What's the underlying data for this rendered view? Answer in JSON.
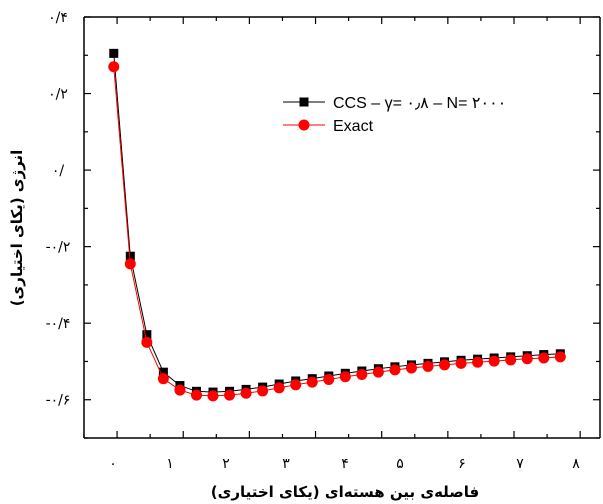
{
  "chart_data": {
    "type": "line",
    "xlabel": "فاصله‌ی بین هسته‌ای (یکای اختیاری)",
    "ylabel": "انرژی (یکای اختیاری)",
    "xlim": [
      0.5,
      8.3
    ],
    "ylim": [
      -0.7,
      0.4
    ],
    "x_ticks": [
      {
        "value": 1,
        "label": "۰"
      },
      {
        "value": 2,
        "label": "۱"
      },
      {
        "value": 3,
        "label": "۲"
      },
      {
        "value": 4,
        "label": "۳"
      },
      {
        "value": 5,
        "label": "۴"
      },
      {
        "value": 6,
        "label": "۵"
      },
      {
        "value": 7,
        "label": "۶"
      },
      {
        "value": 8,
        "label": "۷"
      },
      {
        "value": 9,
        "label": "۸"
      }
    ],
    "y_ticks": [
      {
        "value": 0.4,
        "label": "۰/۴"
      },
      {
        "value": 0.2,
        "label": "۰/۲"
      },
      {
        "value": 0.0,
        "label": "۰/"
      },
      {
        "value": -0.2,
        "label": "-۰/۲"
      },
      {
        "value": -0.4,
        "label": "-۰/۴"
      },
      {
        "value": -0.6,
        "label": "-۰/۶"
      }
    ],
    "legend_position": "top-right",
    "series": [
      {
        "name": "CCS – γ= ۰٫۸ –  N= ۲۰۰۰",
        "marker": "square",
        "color": "#000000",
        "x": [
          0.95,
          1.2,
          1.45,
          1.7,
          1.95,
          2.2,
          2.45,
          2.7,
          2.95,
          3.2,
          3.45,
          3.7,
          3.95,
          4.2,
          4.45,
          4.7,
          4.95,
          5.2,
          5.45,
          5.7,
          5.95,
          6.2,
          6.45,
          6.7,
          6.95,
          7.2,
          7.45,
          7.7
        ],
        "values": [
          0.305,
          -0.225,
          -0.43,
          -0.528,
          -0.563,
          -0.578,
          -0.58,
          -0.578,
          -0.573,
          -0.567,
          -0.559,
          -0.551,
          -0.545,
          -0.538,
          -0.531,
          -0.525,
          -0.519,
          -0.514,
          -0.509,
          -0.505,
          -0.501,
          -0.497,
          -0.494,
          -0.491,
          -0.488,
          -0.485,
          -0.482,
          -0.48
        ]
      },
      {
        "name": "Exact",
        "marker": "circle",
        "color": "#ff0000",
        "x": [
          0.95,
          1.2,
          1.45,
          1.7,
          1.95,
          2.2,
          2.45,
          2.7,
          2.95,
          3.2,
          3.45,
          3.7,
          3.95,
          4.2,
          4.45,
          4.7,
          4.95,
          5.2,
          5.45,
          5.7,
          5.95,
          6.2,
          6.45,
          6.7,
          6.95,
          7.2,
          7.45,
          7.7
        ],
        "values": [
          0.27,
          -0.245,
          -0.45,
          -0.545,
          -0.575,
          -0.588,
          -0.59,
          -0.588,
          -0.583,
          -0.577,
          -0.569,
          -0.561,
          -0.554,
          -0.547,
          -0.54,
          -0.534,
          -0.528,
          -0.522,
          -0.517,
          -0.513,
          -0.509,
          -0.505,
          -0.502,
          -0.499,
          -0.496,
          -0.493,
          -0.491,
          -0.488
        ]
      }
    ]
  }
}
